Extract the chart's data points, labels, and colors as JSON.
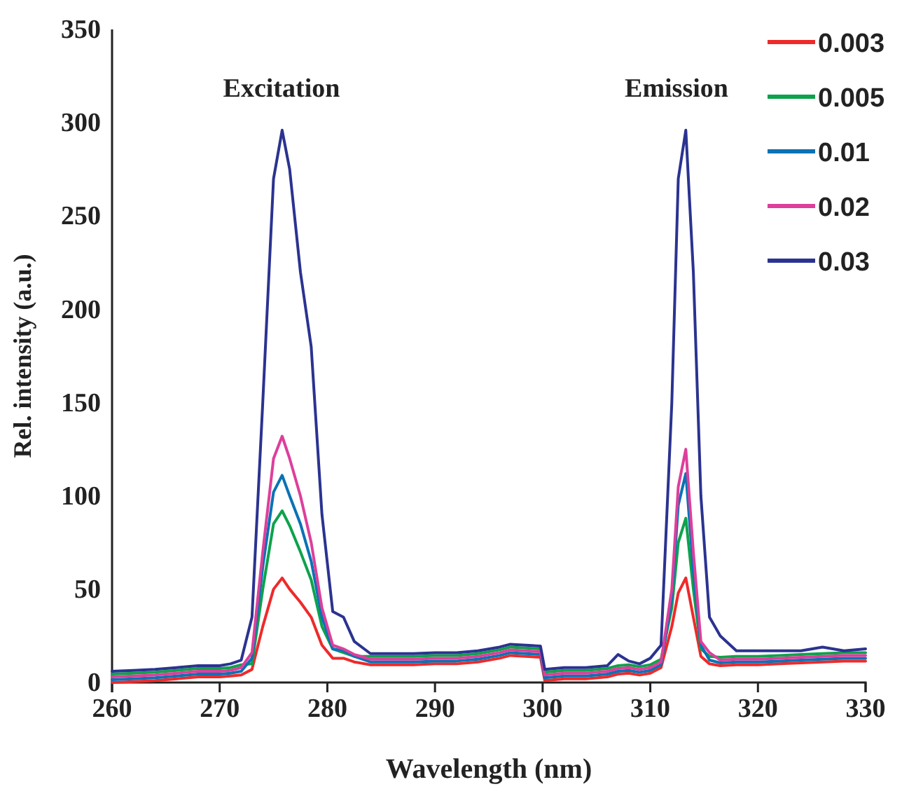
{
  "chart_data": {
    "type": "line",
    "xlabel": "Wavelength (nm)",
    "ylabel": "Rel. intensity (a.u.)",
    "x": [
      260,
      262,
      264,
      266,
      268,
      270,
      271,
      272,
      273,
      274,
      275,
      275.8,
      276.5,
      277.5,
      278.5,
      279.5,
      280.5,
      281.5,
      282.5,
      284,
      286,
      288,
      290,
      292,
      294,
      296,
      297,
      299.8,
      300.2,
      302,
      304,
      306,
      307,
      308,
      309,
      310,
      311,
      312,
      312.6,
      313.3,
      314,
      314.7,
      315.5,
      316.5,
      318,
      320,
      322,
      324,
      326,
      328,
      330
    ],
    "xlim": [
      260,
      330
    ],
    "xticks": [
      260,
      270,
      280,
      290,
      300,
      310,
      320,
      330
    ],
    "ylim": [
      0,
      350
    ],
    "yticks": [
      0,
      50,
      100,
      150,
      200,
      250,
      300,
      350
    ],
    "grid": false,
    "legend": "top right",
    "marker": "none",
    "line_style": "solid",
    "annotations": [
      "Excitation",
      "Emission"
    ],
    "series": [
      {
        "name": "0.003",
        "color": "#ee2a2a",
        "values": [
          0,
          0.5,
          1,
          2,
          3,
          3,
          3.5,
          4,
          7,
          30,
          50,
          56,
          50,
          43,
          35,
          20,
          13,
          13,
          11,
          9.5,
          9.5,
          9.5,
          10,
          10,
          11,
          13,
          14.5,
          13.5,
          1,
          2,
          2,
          3,
          4.5,
          5,
          4,
          5,
          8,
          30,
          48,
          56,
          35,
          14,
          10,
          9,
          9.5,
          9.5,
          10,
          10.5,
          11,
          11.5,
          11.5
        ]
      },
      {
        "name": "0.005",
        "color": "#0ea24b",
        "values": [
          4.5,
          5,
          5.5,
          6.5,
          7.5,
          7.5,
          8,
          9.5,
          10,
          50,
          85,
          92,
          84,
          70,
          55,
          30,
          18,
          16,
          14,
          14,
          14,
          14,
          14.5,
          14.5,
          15.5,
          17.5,
          19,
          18,
          5.5,
          6.5,
          6.5,
          7.5,
          9,
          9.5,
          8.5,
          9.5,
          12.5,
          40,
          75,
          88,
          50,
          18,
          14,
          13.5,
          14,
          14,
          14.5,
          15,
          15.5,
          16,
          16
        ]
      },
      {
        "name": "0.01",
        "color": "#0b72b5",
        "values": [
          1.5,
          2,
          2.5,
          3.5,
          4.5,
          4.5,
          5,
          6,
          13,
          62,
          102,
          111,
          100,
          85,
          65,
          35,
          18,
          17,
          14,
          11,
          11,
          11,
          11.5,
          11.5,
          12.5,
          14.5,
          16,
          15,
          2.5,
          3.5,
          3.5,
          4.5,
          6,
          6.5,
          5.5,
          6.5,
          9.5,
          45,
          95,
          112,
          60,
          20,
          12,
          10.5,
          11,
          11,
          11.5,
          12,
          12.5,
          13,
          13
        ]
      },
      {
        "name": "0.02",
        "color": "#dd3f9b",
        "values": [
          3,
          3.5,
          4,
          5,
          6,
          6,
          6.5,
          8,
          16,
          70,
          120,
          132,
          120,
          100,
          75,
          40,
          20,
          18,
          15,
          12.5,
          12.5,
          12.5,
          13,
          13,
          14,
          16,
          17.5,
          16.5,
          4,
          5,
          5,
          6,
          7.5,
          8,
          7,
          8,
          11,
          50,
          105,
          125,
          70,
          22,
          16,
          12,
          12.5,
          12.5,
          13,
          13.5,
          14,
          14.5,
          14.5
        ]
      },
      {
        "name": "0.03",
        "color": "#2b3390",
        "values": [
          6,
          6.5,
          7,
          8,
          9,
          9,
          10,
          12,
          35,
          150,
          270,
          296,
          275,
          220,
          180,
          90,
          38,
          35,
          22,
          15.5,
          15.5,
          15.5,
          16,
          16,
          17,
          19,
          20.5,
          19.5,
          7,
          8,
          8,
          9,
          15,
          11.5,
          10,
          13,
          20,
          150,
          270,
          296,
          220,
          100,
          35,
          25,
          17,
          17,
          17,
          17,
          19,
          17,
          18
        ]
      }
    ]
  }
}
